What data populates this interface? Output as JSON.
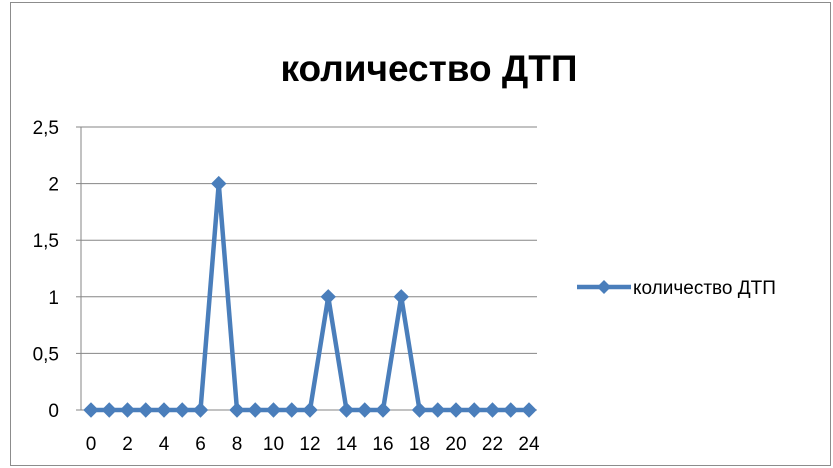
{
  "chart_data": {
    "type": "line",
    "title": "количество ДТП",
    "xlabel": "",
    "ylabel": "",
    "x": [
      0,
      1,
      2,
      3,
      4,
      5,
      6,
      7,
      8,
      9,
      10,
      11,
      12,
      13,
      14,
      15,
      16,
      17,
      18,
      19,
      20,
      21,
      22,
      23,
      24
    ],
    "series": [
      {
        "name": "количество ДТП",
        "values": [
          0,
          0,
          0,
          0,
          0,
          0,
          0,
          2,
          0,
          0,
          0,
          0,
          0,
          1,
          0,
          0,
          0,
          1,
          0,
          0,
          0,
          0,
          0,
          0,
          0
        ],
        "color": "#4a7ebb",
        "marker": "diamond"
      }
    ],
    "x_tick_labels": [
      "0",
      "2",
      "4",
      "6",
      "8",
      "10",
      "12",
      "14",
      "16",
      "18",
      "20",
      "22",
      "24"
    ],
    "y_tick_labels": [
      "0",
      "0,5",
      "1",
      "1,5",
      "2",
      "2,5"
    ],
    "y_ticks": [
      0,
      0.5,
      1,
      1.5,
      2,
      2.5
    ],
    "xlim": [
      0,
      24
    ],
    "ylim": [
      0,
      2.5
    ],
    "grid": "horizontal",
    "legend": "right",
    "gridline_color": "#868686",
    "axis_color": "#868686"
  }
}
